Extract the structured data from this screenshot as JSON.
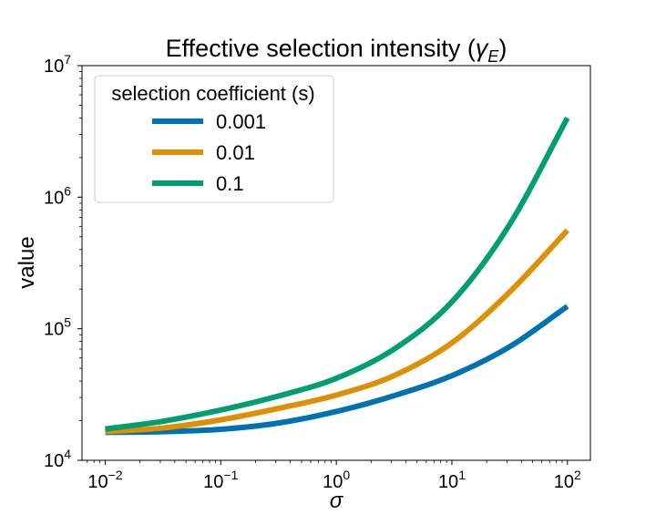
{
  "chart_data": {
    "type": "line",
    "title": "Effective selection intensity (",
    "title_symbol": "γ",
    "title_subscript": "E",
    "title_close": ")",
    "xlabel": "σ",
    "ylabel": "value",
    "xscale": "log",
    "yscale": "log",
    "xlim": [
      0.0063,
      158
    ],
    "ylim": [
      10000,
      10000000
    ],
    "grid": false,
    "x_ticks": [
      {
        "value": 0.01,
        "base": "10",
        "exp": "−2"
      },
      {
        "value": 0.1,
        "base": "10",
        "exp": "−1"
      },
      {
        "value": 1,
        "base": "10",
        "exp": "0"
      },
      {
        "value": 10,
        "base": "10",
        "exp": "1"
      },
      {
        "value": 100,
        "base": "10",
        "exp": "2"
      }
    ],
    "y_ticks": [
      {
        "value": 10000,
        "base": "10",
        "exp": "4"
      },
      {
        "value": 100000,
        "base": "10",
        "exp": "5"
      },
      {
        "value": 1000000,
        "base": "10",
        "exp": "6"
      },
      {
        "value": 10000000,
        "base": "10",
        "exp": "7"
      }
    ],
    "legend": {
      "title": "selection coefficient (s)",
      "placement": "upper-left"
    },
    "series": [
      {
        "name": "0.001",
        "color": "#0072b2",
        "x": [
          0.01,
          0.0316,
          0.1,
          0.316,
          1,
          3.16,
          10,
          31.6,
          100
        ],
        "y": [
          16300,
          16500,
          17200,
          19200,
          23500,
          31000,
          44000,
          73000,
          148000
        ]
      },
      {
        "name": "0.01",
        "color": "#de8f05",
        "x": [
          0.01,
          0.0316,
          0.1,
          0.316,
          1,
          3.16,
          10,
          31.6,
          100
        ],
        "y": [
          16500,
          17600,
          20300,
          24800,
          31300,
          44000,
          78000,
          190000,
          560000
        ]
      },
      {
        "name": "0.1",
        "color": "#029e73",
        "x": [
          0.01,
          0.0316,
          0.1,
          0.316,
          1,
          3.16,
          10,
          31.6,
          100
        ],
        "y": [
          17300,
          19800,
          24100,
          30800,
          42000,
          70000,
          160000,
          620000,
          4000000
        ]
      }
    ]
  }
}
